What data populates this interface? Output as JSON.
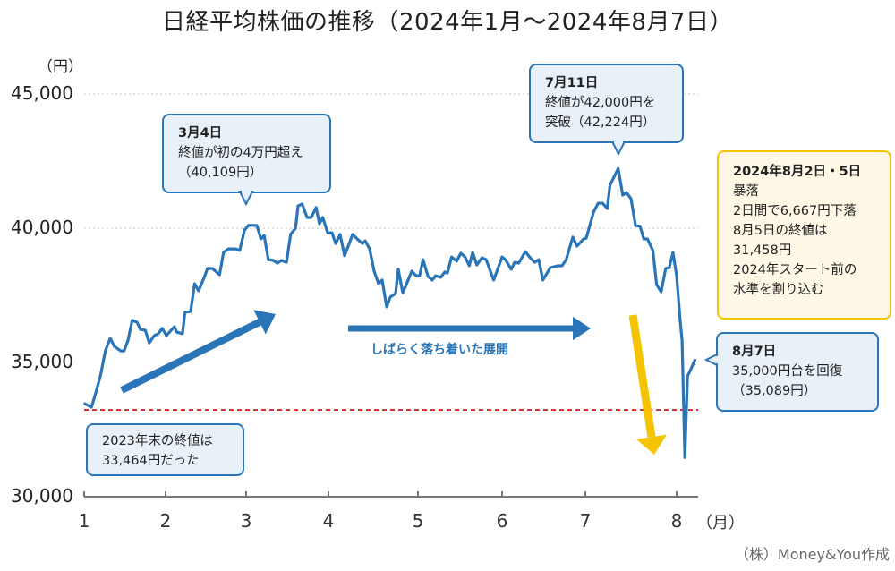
{
  "chart_data": {
    "type": "line",
    "title": "日経平均株価の推移（2024年1月～2024年8月7日）",
    "ylabel": "（円）",
    "xlabel": "（月）",
    "ylim": [
      30000,
      45000
    ],
    "xlim": [
      1,
      8.2
    ],
    "yticks": [
      "30,000",
      "35,000",
      "40,000",
      "45,000"
    ],
    "ytick_values": [
      30000,
      35000,
      40000,
      45000
    ],
    "xticks": [
      "1",
      "2",
      "3",
      "4",
      "5",
      "6",
      "7",
      "8"
    ],
    "grid": "horizontal dotted at 40,000 and 45,000",
    "line_color": "#2a75b8",
    "reference_line": {
      "value": 33464,
      "color": "#d40000",
      "style": "dashed"
    },
    "series": [
      {
        "points": [
          [
            1.01,
            33464
          ],
          [
            1.09,
            33330
          ],
          [
            1.13,
            33730
          ],
          [
            1.2,
            34500
          ],
          [
            1.26,
            35430
          ],
          [
            1.32,
            35900
          ],
          [
            1.37,
            35600
          ],
          [
            1.45,
            35430
          ],
          [
            1.49,
            35430
          ],
          [
            1.54,
            35830
          ],
          [
            1.59,
            36570
          ],
          [
            1.65,
            36500
          ],
          [
            1.69,
            36230
          ],
          [
            1.75,
            36200
          ],
          [
            1.8,
            35730
          ],
          [
            1.86,
            36000
          ],
          [
            1.91,
            36070
          ],
          [
            1.96,
            36270
          ],
          [
            2.01,
            36000
          ],
          [
            2.06,
            36170
          ],
          [
            2.11,
            36330
          ],
          [
            2.14,
            36130
          ],
          [
            2.21,
            36070
          ],
          [
            2.24,
            36870
          ],
          [
            2.31,
            36900
          ],
          [
            2.34,
            37500
          ],
          [
            2.36,
            37930
          ],
          [
            2.41,
            37670
          ],
          [
            2.48,
            38170
          ],
          [
            2.52,
            38500
          ],
          [
            2.58,
            38500
          ],
          [
            2.67,
            38270
          ],
          [
            2.72,
            39100
          ],
          [
            2.78,
            39230
          ],
          [
            2.87,
            39230
          ],
          [
            2.92,
            39170
          ],
          [
            2.98,
            39930
          ],
          [
            3.03,
            40109
          ],
          [
            3.13,
            40100
          ],
          [
            3.18,
            39600
          ],
          [
            3.22,
            39730
          ],
          [
            3.27,
            38830
          ],
          [
            3.33,
            38800
          ],
          [
            3.38,
            38700
          ],
          [
            3.43,
            38800
          ],
          [
            3.49,
            38730
          ],
          [
            3.54,
            39770
          ],
          [
            3.6,
            40000
          ],
          [
            3.63,
            40830
          ],
          [
            3.68,
            40900
          ],
          [
            3.74,
            40400
          ],
          [
            3.79,
            40400
          ],
          [
            3.85,
            40770
          ],
          [
            3.89,
            40170
          ],
          [
            3.93,
            40400
          ],
          [
            3.99,
            39830
          ],
          [
            4.04,
            39830
          ],
          [
            4.08,
            39430
          ],
          [
            4.13,
            39770
          ],
          [
            4.18,
            38970
          ],
          [
            4.27,
            39770
          ],
          [
            4.33,
            39570
          ],
          [
            4.38,
            39430
          ],
          [
            4.41,
            39530
          ],
          [
            4.46,
            39230
          ],
          [
            4.51,
            38400
          ],
          [
            4.56,
            37930
          ],
          [
            4.6,
            38070
          ],
          [
            4.65,
            37070
          ],
          [
            4.69,
            37430
          ],
          [
            4.75,
            37570
          ],
          [
            4.78,
            38470
          ],
          [
            4.83,
            37600
          ],
          [
            4.87,
            37900
          ],
          [
            4.93,
            38400
          ],
          [
            4.98,
            38230
          ],
          [
            5.02,
            38230
          ],
          [
            5.06,
            38830
          ],
          [
            5.12,
            38200
          ],
          [
            5.17,
            38070
          ],
          [
            5.21,
            38230
          ],
          [
            5.27,
            38170
          ],
          [
            5.32,
            38370
          ],
          [
            5.35,
            38330
          ],
          [
            5.4,
            38930
          ],
          [
            5.46,
            38770
          ],
          [
            5.51,
            39070
          ],
          [
            5.56,
            38930
          ],
          [
            5.61,
            38600
          ],
          [
            5.65,
            39100
          ],
          [
            5.7,
            38630
          ],
          [
            5.76,
            38900
          ],
          [
            5.81,
            38830
          ],
          [
            5.9,
            38070
          ],
          [
            6.0,
            38930
          ],
          [
            6.04,
            38830
          ],
          [
            6.11,
            38470
          ],
          [
            6.15,
            38730
          ],
          [
            6.2,
            38700
          ],
          [
            6.28,
            39130
          ],
          [
            6.33,
            38930
          ],
          [
            6.39,
            38730
          ],
          [
            6.44,
            38830
          ],
          [
            6.49,
            38070
          ],
          [
            6.58,
            38530
          ],
          [
            6.67,
            38600
          ],
          [
            6.72,
            38600
          ],
          [
            6.77,
            38830
          ],
          [
            6.85,
            39670
          ],
          [
            6.9,
            39330
          ],
          [
            6.98,
            39600
          ],
          [
            7.01,
            39630
          ],
          [
            7.09,
            40600
          ],
          [
            7.14,
            40930
          ],
          [
            7.19,
            40930
          ],
          [
            7.24,
            40730
          ],
          [
            7.27,
            41600
          ],
          [
            7.36,
            42224
          ],
          [
            7.41,
            41230
          ],
          [
            7.45,
            41330
          ],
          [
            7.5,
            41100
          ],
          [
            7.55,
            40100
          ],
          [
            7.6,
            40070
          ],
          [
            7.64,
            39600
          ],
          [
            7.68,
            39600
          ],
          [
            7.74,
            39170
          ],
          [
            7.78,
            37900
          ],
          [
            7.83,
            37630
          ],
          [
            7.88,
            38500
          ],
          [
            7.92,
            38530
          ],
          [
            7.96,
            39100
          ],
          [
            8.0,
            38230
          ],
          [
            8.04,
            36500
          ],
          [
            8.06,
            35830
          ],
          [
            8.09,
            31458
          ],
          [
            8.12,
            34500
          ],
          [
            8.14,
            34630
          ],
          [
            8.2,
            35089
          ]
        ]
      }
    ],
    "annotations": {
      "mar4": {
        "heading": "3月4日",
        "lines": [
          "終値が初の4万円超え",
          "（40,109円）"
        ]
      },
      "jul11": {
        "heading": "7月11日",
        "lines": [
          "終値が42,000円を",
          "突破（42,224円）"
        ]
      },
      "aug2_5": {
        "heading": "2024年8月2日・5日",
        "lines": [
          "暴落",
          "2日間で6,667円下落",
          "8月5日の終値は",
          "31,458円",
          "2024年スタート前の",
          "水準を割り込む"
        ]
      },
      "aug7": {
        "heading": "8月7日",
        "lines": [
          "35,000円台を回復",
          "（35,089円）"
        ]
      },
      "end2023": {
        "lines": [
          "2023年末の終値は",
          "33,464円だった"
        ]
      },
      "calm": "しばらく落ち着いた展開"
    },
    "arrow_colors": {
      "up": "#2a75b8",
      "flat": "#2a75b8",
      "down": "#f5c400"
    }
  },
  "credit": "（株）Money&You作成"
}
